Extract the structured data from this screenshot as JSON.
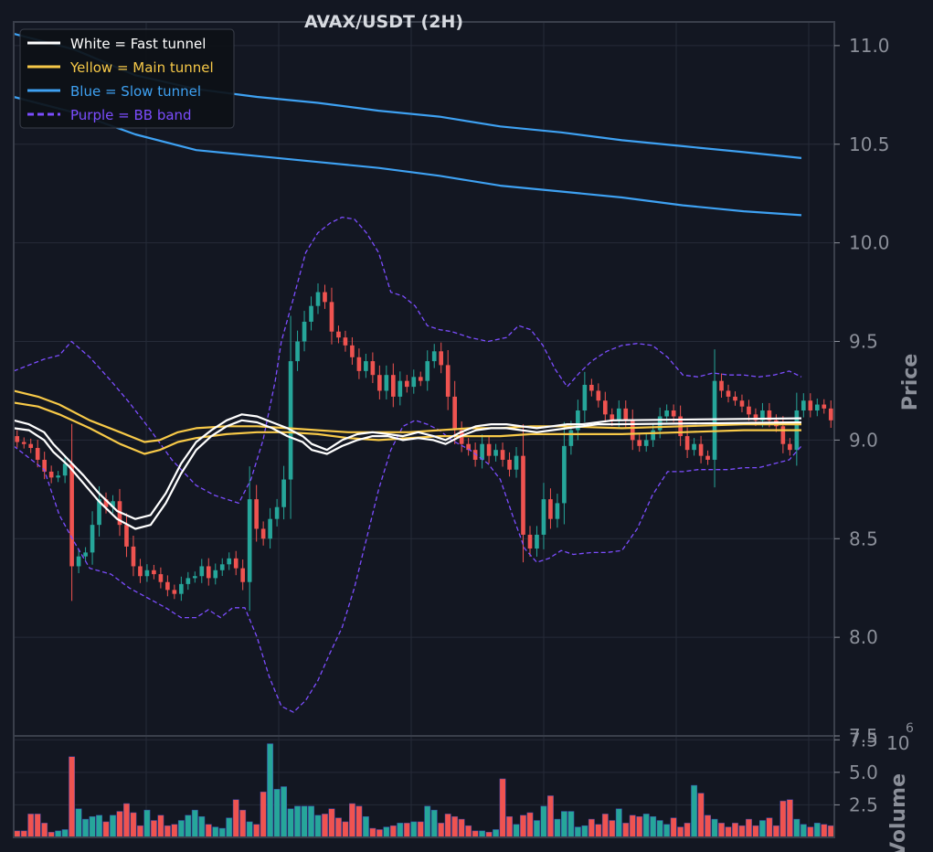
{
  "chart_data": {
    "type": "candlestick",
    "title": "AVAX/USDT (2H)",
    "price_axis": {
      "label": "Price",
      "ticks": [
        "7.5",
        "8.0",
        "8.5",
        "9.0",
        "9.5",
        "10.0",
        "10.5",
        "11.0"
      ],
      "ylim": [
        7.5,
        11.12
      ]
    },
    "volume_axis": {
      "label": "Volume",
      "multiplier": "10",
      "exponent": "6",
      "ticks": [
        "2.5",
        "5.0",
        "7.5"
      ],
      "ylim": [
        0,
        7.8
      ]
    },
    "legend": {
      "placement": "top-left",
      "items": [
        {
          "label": "White = Fast tunnel",
          "color": "#ffffff",
          "style": "solid"
        },
        {
          "label": "Yellow = Main tunnel",
          "color": "#f7c948",
          "style": "solid"
        },
        {
          "label": "Blue = Slow tunnel",
          "color": "#3ea1f2",
          "style": "solid"
        },
        {
          "label": "Purple = BB band",
          "color": "#7c4dff",
          "style": "dashed"
        }
      ]
    },
    "colors": {
      "up": "#26a69a",
      "down": "#ef5350",
      "fast": "#ffffff",
      "main": "#f7c948",
      "slow": "#3ea1f2",
      "bb": "#7c4dff",
      "grid": "#262b38",
      "background": "#131722"
    },
    "grid": true,
    "candle_count": 120,
    "closes": [
      8.99,
      8.98,
      8.96,
      8.9,
      8.84,
      8.81,
      8.82,
      8.88,
      8.36,
      8.41,
      8.43,
      8.57,
      8.7,
      8.66,
      8.69,
      8.57,
      8.46,
      8.36,
      8.31,
      8.34,
      8.32,
      8.28,
      8.24,
      8.22,
      8.27,
      8.3,
      8.31,
      8.36,
      8.3,
      8.34,
      8.37,
      8.4,
      8.35,
      8.28,
      8.7,
      8.55,
      8.5,
      8.6,
      8.66,
      8.8,
      9.4,
      9.5,
      9.6,
      9.68,
      9.75,
      9.7,
      9.55,
      9.52,
      9.48,
      9.42,
      9.35,
      9.4,
      9.33,
      9.25,
      9.33,
      9.22,
      9.3,
      9.27,
      9.32,
      9.3,
      9.4,
      9.45,
      9.38,
      9.22,
      9.05,
      8.98,
      8.95,
      8.9,
      8.98,
      8.92,
      8.95,
      8.9,
      8.85,
      8.92,
      8.52,
      8.45,
      8.52,
      8.7,
      8.6,
      8.68,
      8.97,
      9.05,
      9.15,
      9.28,
      9.25,
      9.2,
      9.13,
      9.1,
      9.16,
      9.1,
      9.0,
      8.97,
      9.0,
      9.05,
      9.12,
      9.15,
      9.12,
      9.02,
      8.95,
      8.98,
      8.92,
      8.9,
      9.3,
      9.25,
      9.22,
      9.2,
      9.17,
      9.13,
      9.1,
      9.15,
      9.1,
      9.07,
      8.98,
      8.95,
      9.15,
      9.2,
      9.15,
      9.18,
      9.16,
      9.1
    ],
    "volumes": [
      0.5,
      0.5,
      1.8,
      1.8,
      1.1,
      0.4,
      0.5,
      0.6,
      6.2,
      2.2,
      1.4,
      1.6,
      1.7,
      1.2,
      1.7,
      2.0,
      2.6,
      1.9,
      0.9,
      2.1,
      1.3,
      1.7,
      0.9,
      1.0,
      1.3,
      1.7,
      2.1,
      1.6,
      1.0,
      0.8,
      0.7,
      1.5,
      2.9,
      2.1,
      1.2,
      1.0,
      3.5,
      7.2,
      3.7,
      3.9,
      2.2,
      2.4,
      2.4,
      2.4,
      1.7,
      1.8,
      2.2,
      1.5,
      1.2,
      2.6,
      2.4,
      1.6,
      0.7,
      0.6,
      0.8,
      0.9,
      1.1,
      1.1,
      1.2,
      1.2,
      2.4,
      2.1,
      1.1,
      1.8,
      1.6,
      1.4,
      0.9,
      0.5,
      0.5,
      0.4,
      0.6,
      4.5,
      1.6,
      1.0,
      1.7,
      1.9,
      1.3,
      2.4,
      3.2,
      1.4,
      2.0,
      2.0,
      0.8,
      0.9,
      1.4,
      1.0,
      1.8,
      1.3,
      2.2,
      1.1,
      1.7,
      1.6,
      1.8,
      1.6,
      1.3,
      1.0,
      1.5,
      0.8,
      1.1,
      4.0,
      3.4,
      1.7,
      1.4,
      1.1,
      0.8,
      1.1,
      0.9,
      1.4,
      0.9,
      1.3,
      1.5,
      0.9,
      2.8,
      2.9,
      1.4,
      1.0,
      0.8,
      1.1,
      1.0,
      0.9
    ],
    "slow_tunnel": {
      "upper": [
        [
          0,
          11.06
        ],
        [
          20,
          10.98
        ],
        [
          40,
          10.85
        ],
        [
          60,
          10.78
        ],
        [
          80,
          10.74
        ],
        [
          100,
          10.71
        ],
        [
          120,
          10.67
        ],
        [
          140,
          10.64
        ],
        [
          160,
          10.59
        ],
        [
          180,
          10.56
        ],
        [
          200,
          10.52
        ],
        [
          220,
          10.49
        ],
        [
          240,
          10.46
        ],
        [
          259,
          10.43
        ]
      ],
      "lower": [
        [
          0,
          10.74
        ],
        [
          20,
          10.66
        ],
        [
          40,
          10.55
        ],
        [
          60,
          10.47
        ],
        [
          80,
          10.44
        ],
        [
          100,
          10.41
        ],
        [
          120,
          10.38
        ],
        [
          140,
          10.34
        ],
        [
          160,
          10.29
        ],
        [
          180,
          10.26
        ],
        [
          200,
          10.23
        ],
        [
          220,
          10.19
        ],
        [
          240,
          10.16
        ],
        [
          259,
          10.14
        ]
      ]
    },
    "main_tunnel": {
      "upper": [
        [
          0,
          9.25
        ],
        [
          8,
          9.22
        ],
        [
          15,
          9.18
        ],
        [
          25,
          9.1
        ],
        [
          35,
          9.04
        ],
        [
          43,
          8.99
        ],
        [
          48,
          9.0
        ],
        [
          54,
          9.04
        ],
        [
          60,
          9.06
        ],
        [
          70,
          9.07
        ],
        [
          80,
          9.07
        ],
        [
          90,
          9.06
        ],
        [
          100,
          9.05
        ],
        [
          110,
          9.04
        ],
        [
          120,
          9.04
        ],
        [
          130,
          9.04
        ],
        [
          140,
          9.05
        ],
        [
          150,
          9.06
        ],
        [
          160,
          9.06
        ],
        [
          170,
          9.07
        ],
        [
          180,
          9.07
        ],
        [
          200,
          9.06
        ],
        [
          220,
          9.07
        ],
        [
          240,
          9.08
        ],
        [
          259,
          9.08
        ]
      ],
      "lower": [
        [
          0,
          9.19
        ],
        [
          8,
          9.17
        ],
        [
          15,
          9.13
        ],
        [
          25,
          9.06
        ],
        [
          35,
          8.98
        ],
        [
          43,
          8.93
        ],
        [
          48,
          8.95
        ],
        [
          54,
          8.99
        ],
        [
          60,
          9.01
        ],
        [
          70,
          9.03
        ],
        [
          80,
          9.04
        ],
        [
          90,
          9.04
        ],
        [
          100,
          9.03
        ],
        [
          110,
          9.01
        ],
        [
          120,
          9.0
        ],
        [
          130,
          9.01
        ],
        [
          140,
          9.02
        ],
        [
          150,
          9.02
        ],
        [
          160,
          9.02
        ],
        [
          170,
          9.03
        ],
        [
          180,
          9.03
        ],
        [
          200,
          9.03
        ],
        [
          220,
          9.04
        ],
        [
          240,
          9.05
        ],
        [
          259,
          9.05
        ]
      ]
    },
    "fast_tunnel": {
      "upper": [
        [
          0,
          9.1
        ],
        [
          5,
          9.08
        ],
        [
          10,
          9.04
        ],
        [
          13,
          8.98
        ],
        [
          18,
          8.9
        ],
        [
          23,
          8.82
        ],
        [
          28,
          8.73
        ],
        [
          34,
          8.64
        ],
        [
          40,
          8.6
        ],
        [
          45,
          8.62
        ],
        [
          50,
          8.73
        ],
        [
          55,
          8.88
        ],
        [
          60,
          8.99
        ],
        [
          65,
          9.05
        ],
        [
          70,
          9.1
        ],
        [
          75,
          9.13
        ],
        [
          80,
          9.12
        ],
        [
          85,
          9.09
        ],
        [
          90,
          9.06
        ],
        [
          95,
          9.02
        ],
        [
          98,
          8.98
        ],
        [
          103,
          8.95
        ],
        [
          108,
          9.0
        ],
        [
          113,
          9.03
        ],
        [
          118,
          9.04
        ],
        [
          123,
          9.03
        ],
        [
          128,
          9.02
        ],
        [
          133,
          9.04
        ],
        [
          138,
          9.02
        ],
        [
          142,
          9.0
        ],
        [
          147,
          9.04
        ],
        [
          152,
          9.07
        ],
        [
          157,
          9.08
        ],
        [
          162,
          9.08
        ],
        [
          167,
          9.07
        ],
        [
          172,
          9.06
        ],
        [
          177,
          9.07
        ],
        [
          182,
          9.08
        ],
        [
          187,
          9.08
        ],
        [
          192,
          9.09
        ],
        [
          197,
          9.1
        ],
        [
          259,
          9.11
        ]
      ],
      "lower": [
        [
          0,
          9.06
        ],
        [
          5,
          9.05
        ],
        [
          10,
          9.0
        ],
        [
          13,
          8.94
        ],
        [
          18,
          8.87
        ],
        [
          23,
          8.78
        ],
        [
          28,
          8.69
        ],
        [
          34,
          8.6
        ],
        [
          40,
          8.55
        ],
        [
          45,
          8.57
        ],
        [
          50,
          8.68
        ],
        [
          55,
          8.83
        ],
        [
          60,
          8.95
        ],
        [
          65,
          9.02
        ],
        [
          70,
          9.07
        ],
        [
          75,
          9.1
        ],
        [
          80,
          9.09
        ],
        [
          85,
          9.06
        ],
        [
          90,
          9.02
        ],
        [
          95,
          8.99
        ],
        [
          98,
          8.95
        ],
        [
          103,
          8.93
        ],
        [
          108,
          8.97
        ],
        [
          113,
          9.0
        ],
        [
          118,
          9.02
        ],
        [
          123,
          9.02
        ],
        [
          128,
          9.0
        ],
        [
          133,
          9.01
        ],
        [
          138,
          9.0
        ],
        [
          142,
          8.98
        ],
        [
          147,
          9.02
        ],
        [
          152,
          9.05
        ],
        [
          157,
          9.06
        ],
        [
          162,
          9.06
        ],
        [
          167,
          9.05
        ],
        [
          172,
          9.04
        ],
        [
          177,
          9.05
        ],
        [
          182,
          9.06
        ],
        [
          187,
          9.07
        ],
        [
          192,
          9.08
        ],
        [
          197,
          9.08
        ],
        [
          259,
          9.09
        ]
      ]
    },
    "bb_band": {
      "upper": [
        [
          0,
          9.35
        ],
        [
          5,
          9.38
        ],
        [
          10,
          9.41
        ],
        [
          15,
          9.43
        ],
        [
          19,
          9.5
        ],
        [
          25,
          9.42
        ],
        [
          32,
          9.3
        ],
        [
          38,
          9.19
        ],
        [
          45,
          9.05
        ],
        [
          52,
          8.9
        ],
        [
          60,
          8.77
        ],
        [
          66,
          8.72
        ],
        [
          70,
          8.7
        ],
        [
          74,
          8.68
        ],
        [
          78,
          8.8
        ],
        [
          82,
          9.0
        ],
        [
          86,
          9.3
        ],
        [
          88,
          9.5
        ],
        [
          92,
          9.72
        ],
        [
          96,
          9.95
        ],
        [
          100,
          10.05
        ],
        [
          104,
          10.1
        ],
        [
          108,
          10.13
        ],
        [
          112,
          10.12
        ],
        [
          116,
          10.05
        ],
        [
          120,
          9.95
        ],
        [
          124,
          9.75
        ],
        [
          128,
          9.73
        ],
        [
          132,
          9.68
        ],
        [
          136,
          9.58
        ],
        [
          140,
          9.56
        ],
        [
          144,
          9.55
        ],
        [
          150,
          9.52
        ],
        [
          156,
          9.5
        ],
        [
          162,
          9.52
        ],
        [
          166,
          9.58
        ],
        [
          170,
          9.56
        ],
        [
          174,
          9.48
        ],
        [
          178,
          9.36
        ],
        [
          182,
          9.27
        ],
        [
          186,
          9.34
        ],
        [
          190,
          9.4
        ],
        [
          195,
          9.45
        ],
        [
          200,
          9.48
        ],
        [
          205,
          9.49
        ],
        [
          210,
          9.48
        ],
        [
          215,
          9.42
        ],
        [
          220,
          9.33
        ],
        [
          225,
          9.32
        ],
        [
          230,
          9.34
        ],
        [
          235,
          9.33
        ],
        [
          240,
          9.33
        ],
        [
          245,
          9.32
        ],
        [
          250,
          9.33
        ],
        [
          255,
          9.35
        ],
        [
          259,
          9.32
        ]
      ],
      "lower": [
        [
          0,
          8.97
        ],
        [
          10,
          8.85
        ],
        [
          15,
          8.62
        ],
        [
          20,
          8.48
        ],
        [
          25,
          8.35
        ],
        [
          32,
          8.32
        ],
        [
          38,
          8.25
        ],
        [
          44,
          8.2
        ],
        [
          50,
          8.15
        ],
        [
          55,
          8.1
        ],
        [
          60,
          8.1
        ],
        [
          64,
          8.14
        ],
        [
          68,
          8.1
        ],
        [
          72,
          8.15
        ],
        [
          76,
          8.15
        ],
        [
          80,
          8.0
        ],
        [
          84,
          7.8
        ],
        [
          88,
          7.65
        ],
        [
          92,
          7.62
        ],
        [
          96,
          7.68
        ],
        [
          100,
          7.78
        ],
        [
          104,
          7.92
        ],
        [
          108,
          8.05
        ],
        [
          112,
          8.25
        ],
        [
          116,
          8.5
        ],
        [
          120,
          8.75
        ],
        [
          124,
          8.95
        ],
        [
          128,
          9.07
        ],
        [
          132,
          9.1
        ],
        [
          136,
          9.08
        ],
        [
          140,
          9.05
        ],
        [
          144,
          9.0
        ],
        [
          150,
          8.95
        ],
        [
          156,
          8.88
        ],
        [
          160,
          8.8
        ],
        [
          164,
          8.62
        ],
        [
          168,
          8.45
        ],
        [
          172,
          8.38
        ],
        [
          176,
          8.4
        ],
        [
          180,
          8.44
        ],
        [
          184,
          8.42
        ],
        [
          190,
          8.43
        ],
        [
          195,
          8.43
        ],
        [
          200,
          8.44
        ],
        [
          205,
          8.55
        ],
        [
          210,
          8.72
        ],
        [
          215,
          8.84
        ],
        [
          220,
          8.84
        ],
        [
          225,
          8.85
        ],
        [
          230,
          8.85
        ],
        [
          235,
          8.85
        ],
        [
          240,
          8.86
        ],
        [
          245,
          8.86
        ],
        [
          250,
          8.88
        ],
        [
          255,
          8.9
        ],
        [
          259,
          8.97
        ]
      ]
    }
  }
}
